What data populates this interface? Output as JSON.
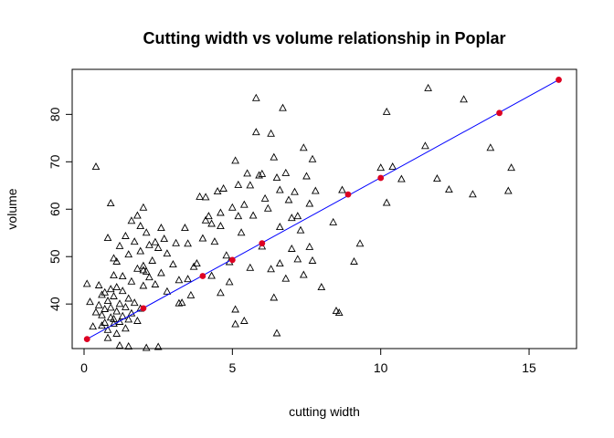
{
  "chart_data": {
    "type": "scatter",
    "title": "Cutting width vs volume relationship in Poplar",
    "xlabel": "cutting width",
    "ylabel": "volume",
    "xlim": [
      -0.4,
      16.6
    ],
    "ylim": [
      30.6,
      89.5
    ],
    "xticks": [
      0,
      5,
      10,
      15
    ],
    "yticks": [
      40,
      50,
      60,
      70,
      80
    ],
    "colors": {
      "points": "#000000",
      "fit_line": "#0000ff",
      "fit_points": "#dd0022"
    },
    "series": [
      {
        "marker": "triangle",
        "points": [
          [
            0.1,
            44.2
          ],
          [
            0.2,
            40.4
          ],
          [
            0.3,
            35.2
          ],
          [
            0.4,
            38.2
          ],
          [
            0.5,
            43.9
          ],
          [
            0.5,
            39.7
          ],
          [
            0.6,
            41.9
          ],
          [
            0.6,
            37.6
          ],
          [
            0.6,
            35.4
          ],
          [
            0.7,
            42.4
          ],
          [
            0.7,
            38.9
          ],
          [
            0.7,
            36.0
          ],
          [
            0.8,
            40.6
          ],
          [
            0.8,
            34.5
          ],
          [
            0.8,
            32.8
          ],
          [
            0.9,
            43.1
          ],
          [
            0.9,
            39.2
          ],
          [
            0.9,
            37.1
          ],
          [
            1.0,
            41.6
          ],
          [
            1.0,
            36.8
          ],
          [
            1.0,
            35.8
          ],
          [
            1.1,
            43.5
          ],
          [
            1.1,
            38.4
          ],
          [
            1.1,
            33.7
          ],
          [
            1.2,
            40.0
          ],
          [
            1.2,
            36.2
          ],
          [
            1.3,
            42.7
          ],
          [
            1.3,
            37.4
          ],
          [
            1.4,
            39.3
          ],
          [
            1.4,
            34.8
          ],
          [
            1.5,
            41.1
          ],
          [
            1.5,
            36.7
          ],
          [
            1.6,
            38.0
          ],
          [
            1.7,
            40.2
          ],
          [
            1.8,
            36.4
          ],
          [
            1.9,
            39.0
          ],
          [
            0.4,
            68.9
          ],
          [
            0.8,
            53.9
          ],
          [
            0.9,
            61.2
          ],
          [
            1.0,
            46.0
          ],
          [
            1.0,
            49.6
          ],
          [
            1.1,
            48.9
          ],
          [
            1.2,
            52.2
          ],
          [
            1.3,
            45.8
          ],
          [
            1.4,
            54.3
          ],
          [
            1.5,
            50.4
          ],
          [
            1.6,
            57.5
          ],
          [
            1.6,
            44.7
          ],
          [
            1.7,
            53.1
          ],
          [
            1.8,
            58.6
          ],
          [
            1.8,
            47.4
          ],
          [
            1.9,
            51.1
          ],
          [
            1.9,
            56.4
          ],
          [
            2.0,
            60.3
          ],
          [
            2.0,
            47.1
          ],
          [
            2.0,
            43.8
          ],
          [
            2.0,
            48.0
          ],
          [
            2.1,
            46.8
          ],
          [
            2.1,
            55.0
          ],
          [
            2.2,
            45.6
          ],
          [
            2.2,
            52.4
          ],
          [
            2.3,
            49.1
          ],
          [
            2.4,
            53.0
          ],
          [
            2.4,
            44.1
          ],
          [
            2.5,
            51.8
          ],
          [
            2.6,
            46.5
          ],
          [
            2.6,
            56.0
          ],
          [
            2.8,
            50.6
          ],
          [
            2.8,
            42.6
          ],
          [
            3.0,
            48.3
          ],
          [
            3.1,
            52.8
          ],
          [
            3.2,
            45.0
          ],
          [
            3.3,
            40.2
          ],
          [
            3.4,
            56.0
          ],
          [
            3.5,
            52.7
          ],
          [
            3.5,
            45.2
          ],
          [
            3.6,
            41.8
          ],
          [
            3.8,
            48.5
          ],
          [
            3.9,
            62.6
          ],
          [
            4.0,
            53.8
          ],
          [
            4.1,
            62.5
          ],
          [
            4.1,
            57.6
          ],
          [
            4.2,
            58.5
          ],
          [
            4.3,
            56.9
          ],
          [
            4.4,
            53.1
          ],
          [
            4.5,
            63.7
          ],
          [
            4.6,
            59.2
          ],
          [
            4.6,
            56.4
          ],
          [
            4.7,
            64.3
          ],
          [
            4.8,
            50.2
          ],
          [
            4.9,
            48.8
          ],
          [
            4.9,
            44.6
          ],
          [
            5.0,
            60.3
          ],
          [
            5.1,
            70.2
          ],
          [
            5.2,
            65.1
          ],
          [
            5.2,
            58.5
          ],
          [
            5.3,
            55.0
          ],
          [
            5.4,
            60.9
          ],
          [
            5.5,
            67.5
          ],
          [
            5.6,
            65.0
          ],
          [
            5.7,
            58.6
          ],
          [
            5.8,
            83.4
          ],
          [
            5.8,
            76.2
          ],
          [
            5.9,
            67.1
          ],
          [
            6.0,
            67.4
          ],
          [
            6.1,
            62.2
          ],
          [
            6.2,
            60.1
          ],
          [
            6.3,
            75.9
          ],
          [
            6.4,
            70.9
          ],
          [
            6.5,
            66.6
          ],
          [
            6.6,
            64.0
          ],
          [
            6.6,
            56.2
          ],
          [
            6.7,
            81.3
          ],
          [
            6.8,
            67.6
          ],
          [
            6.9,
            61.9
          ],
          [
            7.0,
            58.1
          ],
          [
            7.1,
            63.6
          ],
          [
            7.2,
            58.5
          ],
          [
            7.3,
            55.5
          ],
          [
            7.4,
            72.9
          ],
          [
            7.5,
            66.9
          ],
          [
            7.6,
            61.1
          ],
          [
            7.7,
            70.5
          ],
          [
            7.8,
            63.8
          ],
          [
            8.4,
            57.2
          ],
          [
            8.7,
            64.0
          ],
          [
            10.0,
            68.7
          ],
          [
            10.2,
            80.5
          ],
          [
            10.4,
            68.9
          ],
          [
            10.7,
            66.3
          ],
          [
            10.2,
            61.3
          ],
          [
            11.6,
            85.5
          ],
          [
            11.5,
            73.3
          ],
          [
            11.9,
            66.4
          ],
          [
            12.3,
            64.1
          ],
          [
            12.8,
            83.1
          ],
          [
            13.1,
            63.1
          ],
          [
            13.7,
            72.9
          ],
          [
            14.3,
            63.8
          ],
          [
            14.4,
            68.7
          ],
          [
            2.7,
            53.7
          ],
          [
            3.2,
            40.1
          ],
          [
            3.7,
            47.8
          ],
          [
            4.3,
            45.9
          ],
          [
            4.6,
            42.3
          ],
          [
            5.1,
            38.8
          ],
          [
            5.1,
            35.7
          ],
          [
            5.4,
            36.4
          ],
          [
            5.6,
            47.6
          ],
          [
            6.0,
            52.1
          ],
          [
            6.3,
            47.3
          ],
          [
            6.4,
            41.3
          ],
          [
            6.5,
            33.8
          ],
          [
            6.6,
            48.5
          ],
          [
            6.8,
            45.3
          ],
          [
            7.0,
            51.6
          ],
          [
            7.2,
            49.4
          ],
          [
            7.4,
            46.1
          ],
          [
            7.6,
            52.0
          ],
          [
            7.7,
            49.1
          ],
          [
            8.0,
            43.5
          ],
          [
            8.5,
            38.5
          ],
          [
            8.6,
            38.1
          ],
          [
            9.1,
            48.9
          ],
          [
            9.3,
            52.7
          ],
          [
            1.2,
            31.2
          ],
          [
            1.5,
            31.0
          ],
          [
            2.1,
            30.7
          ],
          [
            2.5,
            30.9
          ]
        ]
      }
    ],
    "fit": {
      "line": [
        [
          0.1,
          32.6
        ],
        [
          16.0,
          87.3
        ]
      ],
      "points": [
        [
          0.1,
          32.6
        ],
        [
          2.0,
          39.1
        ],
        [
          4.0,
          45.9
        ],
        [
          5.0,
          49.3
        ],
        [
          6.0,
          52.8
        ],
        [
          8.9,
          63.1
        ],
        [
          10.0,
          66.6
        ],
        [
          14.0,
          80.3
        ],
        [
          16.0,
          87.3
        ]
      ]
    }
  }
}
